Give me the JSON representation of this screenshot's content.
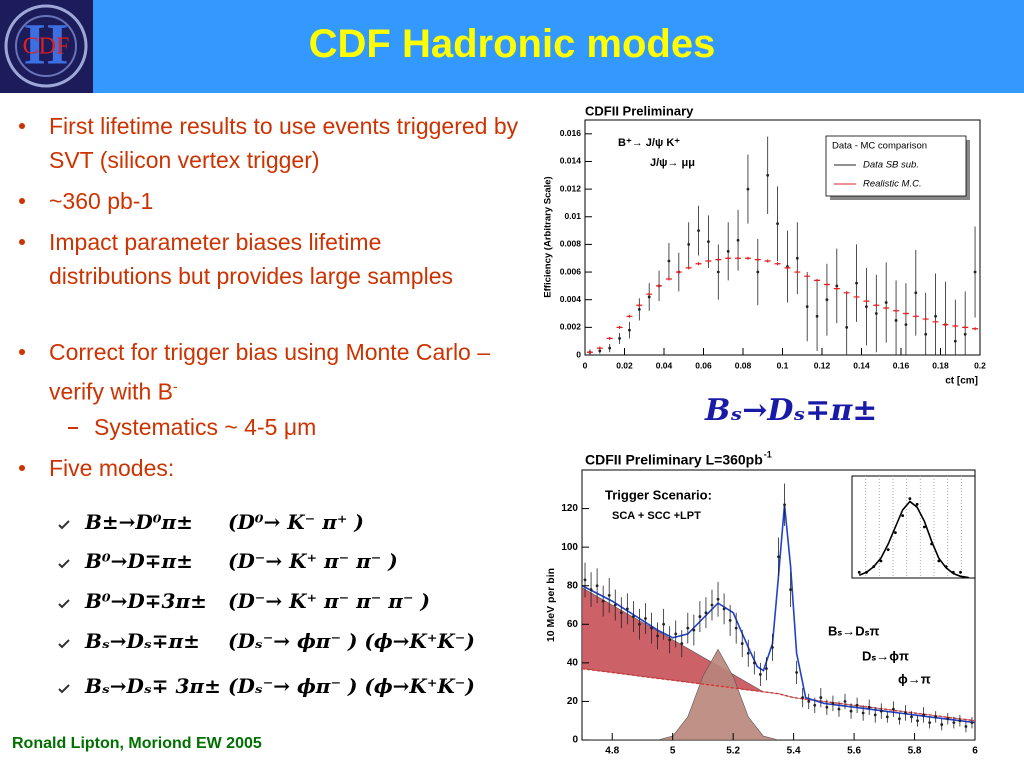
{
  "header": {
    "title": "CDF Hadronic modes",
    "logo": "CDF",
    "logo_mark": "II"
  },
  "bullets": [
    {
      "text": "First lifetime results to use events triggered by SVT (silicon vertex trigger)"
    },
    {
      "text": "~360 pb-1"
    },
    {
      "text": "Impact parameter biases lifetime distributions but provides large samples"
    },
    {
      "text": "Correct for trigger bias using  Monte Carlo – verify with B",
      "sup": "-",
      "sub": [
        "Systematics ~ 4-5 μm"
      ]
    },
    {
      "text": "Five modes:"
    }
  ],
  "modes": [
    [
      "B±→D⁰π±",
      "(D⁰→ K⁻ π⁺ )"
    ],
    [
      "B⁰→D∓π±",
      "(D⁻→ K⁺ π⁻ π⁻ )"
    ],
    [
      "B⁰→D∓3π±",
      "(D⁻→ K⁺ π⁻ π⁻ π⁻ )"
    ],
    [
      "Bₛ→Dₛ∓π±",
      "(Dₛ⁻→ ϕπ⁻ ) (ϕ→K⁺K⁻)"
    ],
    [
      "Bₛ→Dₛ∓ 3π±",
      "(Dₛ⁻→ ϕπ⁻ ) (ϕ→K⁺K⁻)"
    ]
  ],
  "plot_caption": "Bₛ→Dₛ∓π±",
  "footer": "Ronald Lipton, Moriond EW 2005",
  "chart_data": [
    {
      "type": "scatter",
      "title": "CDFII Preliminary",
      "ylabel": "Efficiency (Arbitrary Scale)",
      "xlabel": "ct [cm]",
      "annotations": [
        "B⁺→ J/ψ K⁺",
        "J/ψ→ μμ"
      ],
      "legend": "upper right",
      "legend_title": "Data - MC comparison",
      "xlim": [
        0,
        0.2
      ],
      "ylim": [
        0,
        0.017
      ],
      "xticks": [
        0,
        0.02,
        0.04,
        0.06,
        0.08,
        0.1,
        0.12,
        0.14,
        0.16,
        0.18,
        0.2
      ],
      "yticks": [
        0,
        0.002,
        0.004,
        0.006,
        0.008,
        0.01,
        0.012,
        0.014,
        0.016
      ],
      "x": [
        0.0025,
        0.0075,
        0.0125,
        0.0175,
        0.0225,
        0.0275,
        0.0325,
        0.0375,
        0.0425,
        0.0475,
        0.0525,
        0.0575,
        0.0625,
        0.0675,
        0.0725,
        0.0775,
        0.0825,
        0.0875,
        0.0925,
        0.0975,
        0.1025,
        0.1075,
        0.1125,
        0.1175,
        0.1225,
        0.1275,
        0.1325,
        0.1375,
        0.1425,
        0.1475,
        0.1525,
        0.1575,
        0.1625,
        0.1675,
        0.1725,
        0.1775,
        0.1825,
        0.1875,
        0.1925,
        0.1975
      ],
      "series": [
        {
          "name": "Data SB sub.",
          "color": "#222222",
          "style": "points",
          "values": [
            0.0002,
            0.0003,
            0.0005,
            0.0012,
            0.0018,
            0.0033,
            0.0042,
            0.005,
            0.0068,
            0.006,
            0.008,
            0.009,
            0.0082,
            0.006,
            0.0075,
            0.0083,
            0.012,
            0.006,
            0.013,
            0.0095,
            0.0064,
            0.007,
            0.0035,
            0.0028,
            0.004,
            0.005,
            0.002,
            0.0052,
            0.0035,
            0.003,
            0.0038,
            0.0025,
            0.0022,
            0.0045,
            0.0015,
            0.0028,
            0.0022,
            0.001,
            0.0015,
            0.006
          ],
          "errors": [
            0.0002,
            0.0002,
            0.0003,
            0.0004,
            0.0006,
            0.0008,
            0.001,
            0.0011,
            0.0013,
            0.0014,
            0.0016,
            0.0018,
            0.0019,
            0.002,
            0.0021,
            0.0022,
            0.0025,
            0.0024,
            0.0028,
            0.0027,
            0.0026,
            0.0026,
            0.0025,
            0.0025,
            0.0026,
            0.0027,
            0.0026,
            0.0028,
            0.0028,
            0.0028,
            0.0029,
            0.0029,
            0.003,
            0.0031,
            0.003,
            0.0031,
            0.0031,
            0.003,
            0.0031,
            0.0033
          ]
        },
        {
          "name": "Realistic M.C.",
          "color": "#e02020",
          "style": "crosses",
          "values": [
            0.0002,
            0.0005,
            0.0012,
            0.002,
            0.0028,
            0.0036,
            0.0044,
            0.005,
            0.0055,
            0.006,
            0.0063,
            0.0066,
            0.0068,
            0.0069,
            0.007,
            0.007,
            0.007,
            0.0069,
            0.0068,
            0.0066,
            0.0063,
            0.006,
            0.0057,
            0.0054,
            0.0051,
            0.0048,
            0.0045,
            0.0042,
            0.0039,
            0.0036,
            0.0034,
            0.0032,
            0.003,
            0.0028,
            0.0026,
            0.0024,
            0.0022,
            0.0021,
            0.002,
            0.0019
          ]
        }
      ]
    },
    {
      "type": "scatter",
      "title": "CDFII Preliminary L=360pb",
      "title_sup": "-1",
      "ylabel": "10 MeV per bin",
      "annotations": [
        "Trigger Scenario:",
        "SCA + SCC +LPT",
        "Bₛ→Dₛπ",
        "Dₛ→ϕπ",
        "ϕ→π"
      ],
      "xlim": [
        4.7,
        6
      ],
      "ylim": [
        0,
        140
      ],
      "xticks": [
        4.8,
        5,
        5.2,
        5.4,
        5.6,
        5.8,
        6
      ],
      "yticks": [
        0,
        20,
        40,
        60,
        80,
        100,
        120
      ],
      "series": [
        {
          "color": "#e03030",
          "style": "dashed-line",
          "x": [
            4.7,
            4.75,
            4.8,
            4.85,
            4.9,
            4.95,
            5,
            5.05,
            5.1,
            5.15,
            5.2,
            5.25,
            5.3,
            5.35,
            5.4,
            5.45,
            5.5,
            5.55,
            5.6,
            5.65,
            5.7,
            5.75,
            5.8,
            5.85,
            5.9,
            5.95,
            6
          ],
          "values": [
            37,
            36,
            35,
            34,
            33,
            32,
            31,
            30,
            29,
            28,
            27,
            26,
            25,
            24,
            22,
            21,
            20,
            19,
            18,
            17,
            16,
            15,
            14,
            13,
            12,
            11,
            10
          ]
        },
        {
          "color": "#c85058",
          "style": "area",
          "stacked": true,
          "x": [
            4.7,
            4.75,
            4.8,
            4.85,
            4.9,
            4.95,
            5,
            5.05,
            5.1,
            5.15,
            5.2,
            5.25,
            5.3,
            5.35,
            5.4,
            5.45,
            5.5,
            5.55,
            5.6,
            5.65,
            5.7,
            5.75,
            5.8,
            5.85,
            5.9,
            5.95,
            6
          ],
          "values": [
            42,
            38.5,
            35,
            31.5,
            28,
            24.5,
            21,
            17.5,
            14,
            10.5,
            7,
            3.5,
            0,
            0,
            0,
            0,
            0,
            0,
            0,
            0,
            0,
            0,
            0,
            0,
            0,
            0,
            0
          ]
        },
        {
          "color": "#b8857a",
          "style": "area",
          "x": [
            4.7,
            4.75,
            4.8,
            4.85,
            4.9,
            4.95,
            5,
            5.05,
            5.1,
            5.15,
            5.2,
            5.25,
            5.3,
            5.35,
            5.4,
            5.45,
            5.5,
            5.55,
            5.6,
            5.65,
            5.7,
            5.75,
            5.8,
            5.85,
            5.9,
            5.95,
            6
          ],
          "values": [
            0,
            0,
            0,
            0,
            0,
            0,
            2,
            12,
            33,
            47,
            33,
            12,
            2,
            0,
            0,
            0,
            0,
            0,
            0,
            0,
            0,
            0,
            0,
            0,
            0,
            0,
            0
          ]
        },
        {
          "color": "#2040d0",
          "style": "line",
          "x": [
            4.7,
            4.75,
            4.8,
            4.85,
            4.9,
            4.95,
            5,
            5.05,
            5.1,
            5.15,
            5.2,
            5.25,
            5.28,
            5.3,
            5.33,
            5.35,
            5.37,
            5.39,
            5.41,
            5.44,
            5.5,
            5.55,
            5.6,
            5.65,
            5.7,
            5.75,
            5.8,
            5.85,
            5.9,
            5.95,
            6
          ],
          "values": [
            80,
            76,
            72,
            67,
            62,
            57,
            53,
            55,
            63,
            71,
            66,
            48,
            38,
            36,
            50,
            85,
            122,
            90,
            45,
            22,
            19,
            18,
            17,
            16,
            15,
            14,
            13,
            12,
            11,
            10,
            9
          ]
        },
        {
          "color": "#222222",
          "style": "points",
          "x": [
            4.71,
            4.73,
            4.75,
            4.77,
            4.79,
            4.81,
            4.83,
            4.85,
            4.87,
            4.89,
            4.91,
            4.93,
            4.95,
            4.97,
            4.99,
            5.01,
            5.03,
            5.05,
            5.07,
            5.09,
            5.11,
            5.13,
            5.15,
            5.17,
            5.19,
            5.21,
            5.23,
            5.25,
            5.27,
            5.29,
            5.31,
            5.33,
            5.35,
            5.37,
            5.39,
            5.41,
            5.43,
            5.45,
            5.47,
            5.49,
            5.51,
            5.53,
            5.55,
            5.57,
            5.59,
            5.61,
            5.63,
            5.65,
            5.67,
            5.69,
            5.71,
            5.73,
            5.75,
            5.77,
            5.79,
            5.81,
            5.83,
            5.85,
            5.87,
            5.89,
            5.91,
            5.93,
            5.95,
            5.97,
            5.99
          ],
          "values": [
            83,
            78,
            80,
            72,
            75,
            70,
            66,
            68,
            64,
            60,
            63,
            58,
            54,
            60,
            52,
            55,
            50,
            58,
            57,
            64,
            66,
            70,
            73,
            68,
            62,
            58,
            50,
            45,
            40,
            34,
            37,
            48,
            95,
            122,
            78,
            35,
            22,
            20,
            18,
            22,
            17,
            19,
            16,
            20,
            15,
            18,
            14,
            17,
            13,
            15,
            12,
            16,
            11,
            14,
            12,
            10,
            13,
            9,
            12,
            8,
            11,
            9,
            10,
            7,
            9
          ],
          "errors": [
            9,
            9,
            9,
            8,
            9,
            8,
            8,
            8,
            8,
            8,
            8,
            8,
            7,
            8,
            7,
            7,
            7,
            8,
            8,
            8,
            8,
            8,
            9,
            8,
            8,
            8,
            7,
            7,
            6,
            6,
            6,
            7,
            10,
            11,
            9,
            6,
            5,
            4,
            4,
            5,
            4,
            4,
            4,
            4,
            4,
            4,
            4,
            4,
            4,
            4,
            3,
            4,
            3,
            4,
            3,
            3,
            4,
            3,
            3,
            3,
            3,
            3,
            3,
            3,
            3
          ]
        }
      ]
    },
    {
      "type": "scatter",
      "xlim": [
        5.29,
        5.46
      ],
      "ylim": [
        0,
        18
      ],
      "series": [
        {
          "color": "#000000",
          "style": "line",
          "x": [
            5.3,
            5.31,
            5.32,
            5.33,
            5.34,
            5.35,
            5.36,
            5.37,
            5.38,
            5.39,
            5.4,
            5.41,
            5.42,
            5.43,
            5.44,
            5.45
          ],
          "values": [
            0.5,
            1,
            2,
            3.5,
            6,
            9,
            12,
            13.5,
            12.5,
            10,
            6.5,
            3.5,
            1.8,
            0.8,
            0.3,
            0.1
          ]
        },
        {
          "color": "#000000",
          "style": "points",
          "x": [
            5.3,
            5.31,
            5.32,
            5.33,
            5.34,
            5.35,
            5.36,
            5.37,
            5.38,
            5.39,
            5.4,
            5.41,
            5.42,
            5.43,
            5.44,
            5.45
          ],
          "values": [
            1,
            1,
            2,
            3,
            5,
            8,
            11,
            14,
            13,
            9,
            6,
            3,
            2,
            1,
            1,
            0
          ]
        }
      ]
    }
  ]
}
